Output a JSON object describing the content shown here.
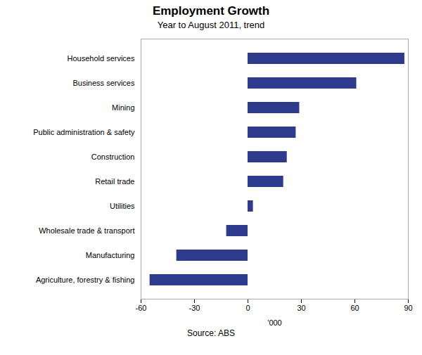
{
  "chart_data": {
    "type": "bar",
    "orientation": "horizontal",
    "title": "Employment Growth",
    "subtitle": "Year to August 2011, trend",
    "source": "Source: ABS",
    "xlabel": "'000",
    "categories": [
      "Agriculture, forestry & fishing",
      "Manufacturing",
      "Wholesale trade & transport",
      "Utilities",
      "Retail trade",
      "Construction",
      "Public administration & safety",
      "Mining",
      "Business services",
      "Household services"
    ],
    "values": [
      -55,
      -40,
      -12,
      3,
      20,
      22,
      27,
      29,
      61,
      88
    ],
    "color": "#2e3a8c",
    "xlim": [
      -60,
      90
    ],
    "xticks": [
      -60,
      -30,
      0,
      30,
      60,
      90
    ],
    "grid": false
  }
}
